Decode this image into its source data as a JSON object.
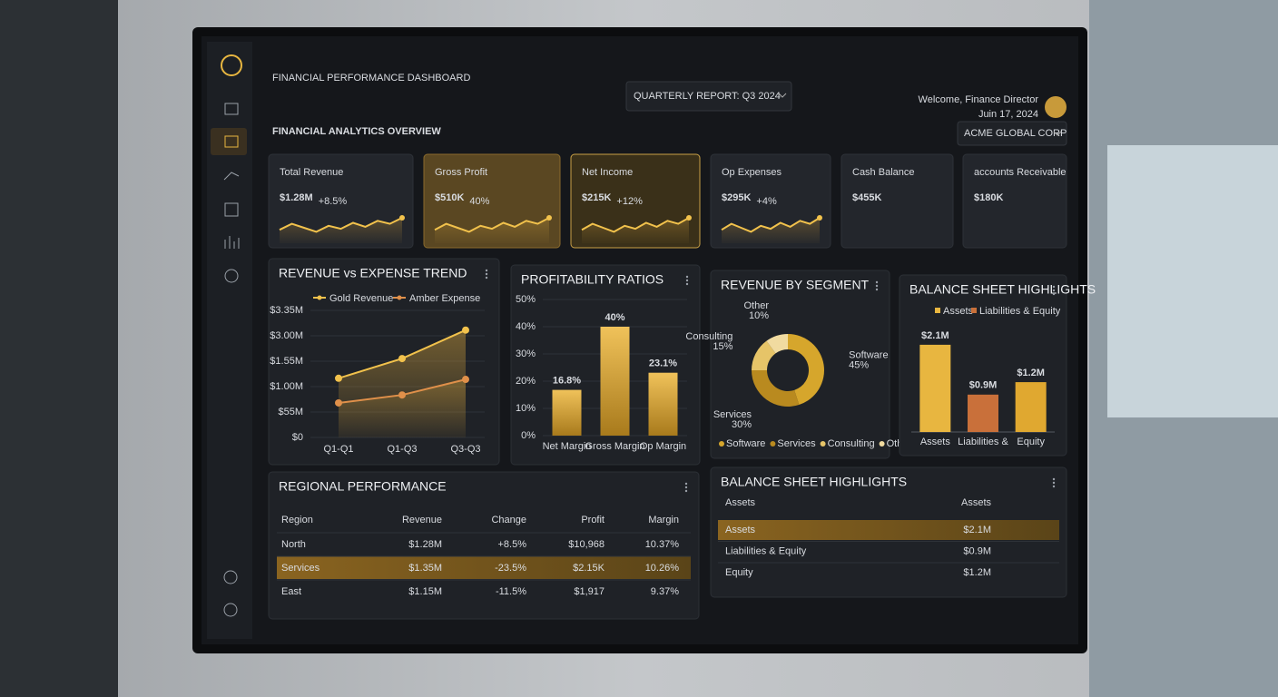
{
  "header": {
    "title": "FINANCIAL PERFORMANCE DASHBOARD",
    "report_selector": "QUARTERLY REPORT: Q3 2024",
    "welcome": "Welcome, Finance Director",
    "date": "Juin 17, 2024"
  },
  "overview": {
    "title": "FINANCIAL ANALYTICS OVERVIEW",
    "company_selector": "ACME GLOBAL CORP"
  },
  "kpis": [
    {
      "label": "Total Revenue",
      "value": "$1.28M",
      "change": "+8.5%"
    },
    {
      "label": "Gross Profit",
      "value": "$510K",
      "change": "40%"
    },
    {
      "label": "Net Income",
      "value": "$215K",
      "change": "+12%"
    },
    {
      "label": "Op Expenses",
      "value": "$295K",
      "change": "+4%"
    },
    {
      "label": "Cash Balance",
      "value": "$455K"
    },
    {
      "label": "accounts Receivable",
      "value": "$180K"
    }
  ],
  "chart_data": [
    {
      "type": "line",
      "title": "REVENUE vs EXPENSE TREND",
      "categories": [
        "Q1-Q1",
        "Q1-Q3",
        "Q3-Q3"
      ],
      "y_axis_labels": [
        "$3.35M",
        "$3.00M",
        "$1.55M",
        "$1.00M",
        "$55M",
        "$0"
      ],
      "ylim": [
        0,
        3.35
      ],
      "series": [
        {
          "name": "Gold Revenue",
          "color": "#f2c24c",
          "values": [
            1.56,
            2.08,
            2.83
          ]
        },
        {
          "name": "Amber Expense",
          "color": "#e0904a",
          "values": [
            0.91,
            1.12,
            1.53
          ]
        }
      ]
    },
    {
      "type": "bar",
      "title": "PROFITABILITY RATIOS",
      "categories": [
        "Net Margin",
        "Gross Margin",
        "Op Margin"
      ],
      "values": [
        16.8,
        40,
        23.1
      ],
      "value_labels": [
        "16.8%",
        "40%",
        "23.1%"
      ],
      "color": "#e0aa38",
      "ylim": [
        0,
        50
      ],
      "yticks": [
        {
          "value": 0,
          "label": "0%"
        },
        {
          "value": 10,
          "label": "10%"
        },
        {
          "value": 20,
          "label": "20%"
        },
        {
          "value": 30,
          "label": "30%"
        },
        {
          "value": 40,
          "label": "40%"
        },
        {
          "value": 50,
          "label": "50%"
        }
      ]
    },
    {
      "type": "pie",
      "title": "REVENUE BY SEGMENT",
      "categories": [
        "Software",
        "Services",
        "Consulting",
        "Other"
      ],
      "values": [
        45,
        30,
        15,
        10
      ],
      "value_labels": [
        "45%",
        "30%",
        "15%",
        "10%"
      ],
      "colors": [
        "#d6a62c",
        "#b98a1f",
        "#e6c468",
        "#f1dba0"
      ]
    },
    {
      "type": "bar",
      "title": "BALANCE SHEET HIGHLIGHTS",
      "categories": [
        "Assets",
        "Liabilities &",
        "Equity"
      ],
      "values": [
        2.1,
        0.9,
        1.2
      ],
      "value_labels": [
        "$2.1M",
        "$0.9M",
        "$1.2M"
      ],
      "colors": [
        "#e8b640",
        "#c9703a",
        "#e0a830"
      ],
      "ylim": [
        0,
        2.6
      ],
      "legend": [
        "Assets",
        "Liabilities & Equity"
      ],
      "legend_colors": [
        "#e8b640",
        "#c9703a"
      ]
    }
  ],
  "regional": {
    "title": "REGIONAL PERFORMANCE",
    "columns": [
      "Region",
      "Revenue",
      "Change",
      "Profit",
      "Margin"
    ],
    "rows": [
      [
        "North",
        "$1.28M",
        "+8.5%",
        "$10,968",
        "10.37%"
      ],
      [
        "Services",
        "$1.35M",
        "-23.5%",
        "$2.15K",
        "10.26%"
      ],
      [
        "East",
        "$1.15M",
        "-11.5%",
        "$1,917",
        "9.37%"
      ]
    ]
  },
  "balance_table": {
    "title": "BALANCE SHEET HIGHLIGHTS",
    "columns": [
      "Assets",
      "Assets"
    ],
    "rows": [
      [
        "Assets",
        "$2.1M"
      ],
      [
        "Liabilities & Equity",
        "$0.9M"
      ],
      [
        "Equity",
        "$1.2M"
      ]
    ]
  }
}
